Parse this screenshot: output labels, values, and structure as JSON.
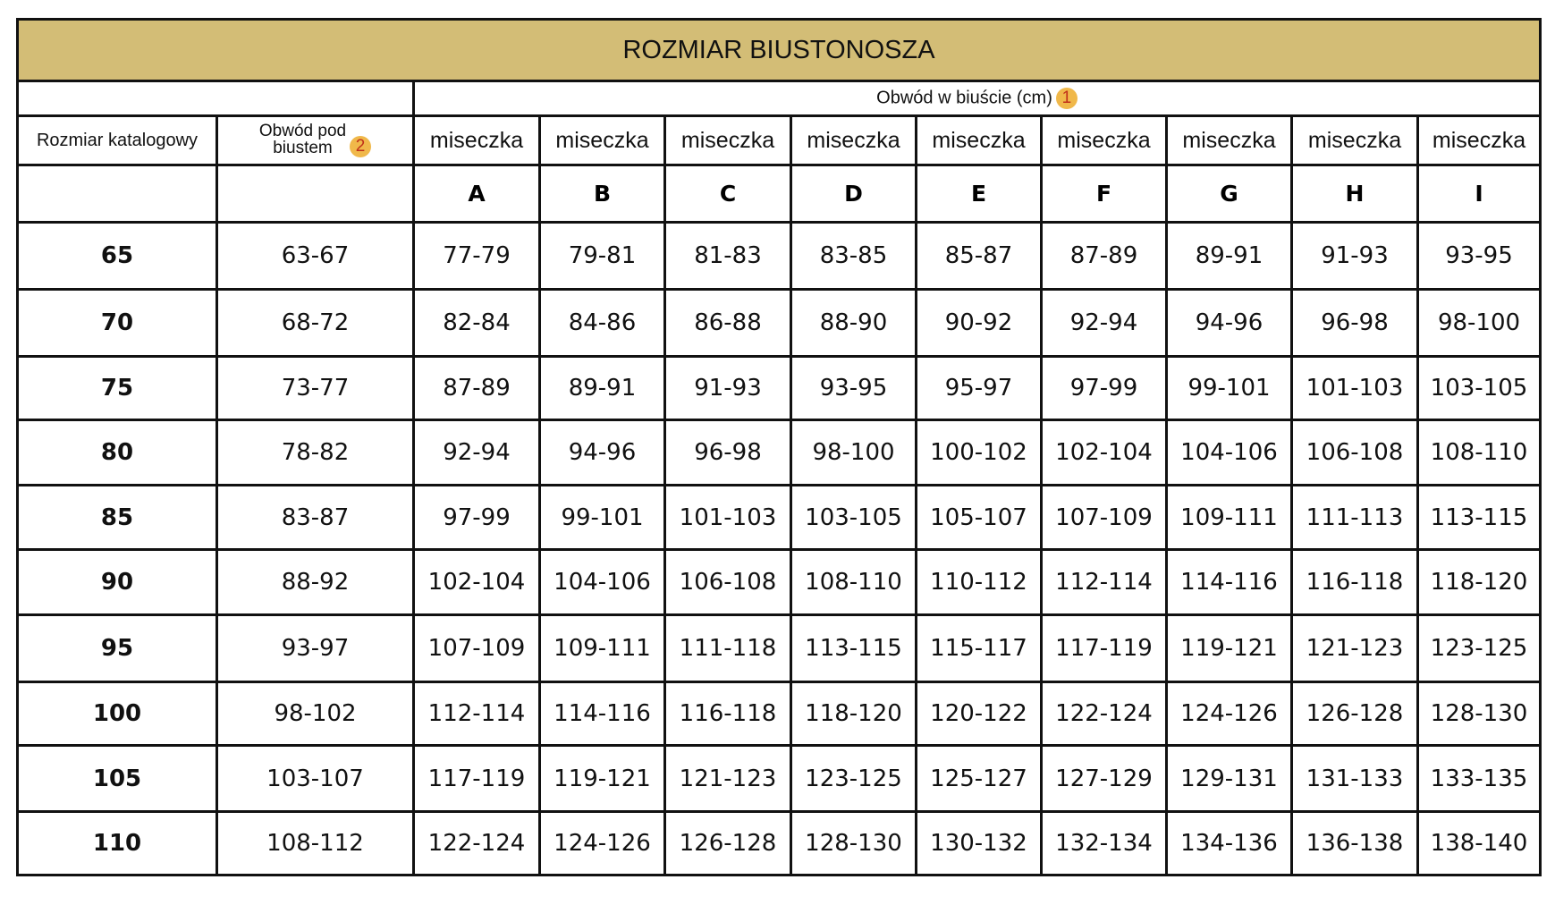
{
  "title": "ROZMIAR BIUSTONOSZA",
  "header": {
    "bust_circumference": "Obwód w biuście (cm)",
    "bust_badge": "1",
    "catalog_size": "Rozmiar katalogowy",
    "underbust_line1": "Obwód pod",
    "underbust_line2": "biustem",
    "underbust_badge": "2",
    "cup_label": "miseczka",
    "cups": [
      "A",
      "B",
      "C",
      "D",
      "E",
      "F",
      "G",
      "H",
      "I"
    ]
  },
  "rows": [
    {
      "size": "65",
      "underbust": "63-67",
      "values": [
        "77-79",
        "79-81",
        "81-83",
        "83-85",
        "85-87",
        "87-89",
        "89-91",
        "91-93",
        "93-95"
      ]
    },
    {
      "size": "70",
      "underbust": "68-72",
      "values": [
        "82-84",
        "84-86",
        "86-88",
        "88-90",
        "90-92",
        "92-94",
        "94-96",
        "96-98",
        "98-100"
      ]
    },
    {
      "size": "75",
      "underbust": "73-77",
      "values": [
        "87-89",
        "89-91",
        "91-93",
        "93-95",
        "95-97",
        "97-99",
        "99-101",
        "101-103",
        "103-105"
      ]
    },
    {
      "size": "80",
      "underbust": "78-82",
      "values": [
        "92-94",
        "94-96",
        "96-98",
        "98-100",
        "100-102",
        "102-104",
        "104-106",
        "106-108",
        "108-110"
      ]
    },
    {
      "size": "85",
      "underbust": "83-87",
      "values": [
        "97-99",
        "99-101",
        "101-103",
        "103-105",
        "105-107",
        "107-109",
        "109-111",
        "111-113",
        "113-115"
      ]
    },
    {
      "size": "90",
      "underbust": "88-92",
      "values": [
        "102-104",
        "104-106",
        "106-108",
        "108-110",
        "110-112",
        "112-114",
        "114-116",
        "116-118",
        "118-120"
      ]
    },
    {
      "size": "95",
      "underbust": "93-97",
      "values": [
        "107-109",
        "109-111",
        "111-118",
        "113-115",
        "115-117",
        "117-119",
        "119-121",
        "121-123",
        "123-125"
      ]
    },
    {
      "size": "100",
      "underbust": "98-102",
      "values": [
        "112-114",
        "114-116",
        "116-118",
        "118-120",
        "120-122",
        "122-124",
        "124-126",
        "126-128",
        "128-130"
      ]
    },
    {
      "size": "105",
      "underbust": "103-107",
      "values": [
        "117-119",
        "119-121",
        "121-123",
        "123-125",
        "125-127",
        "127-129",
        "129-131",
        "131-133",
        "133-135"
      ]
    },
    {
      "size": "110",
      "underbust": "108-112",
      "values": [
        "122-124",
        "124-126",
        "126-128",
        "128-130",
        "130-132",
        "132-134",
        "134-136",
        "136-138",
        "138-140"
      ]
    }
  ],
  "colors": {
    "title_bg": "#d3bd76",
    "badge": "#f0b84a",
    "badge_text": "#c0301a"
  }
}
